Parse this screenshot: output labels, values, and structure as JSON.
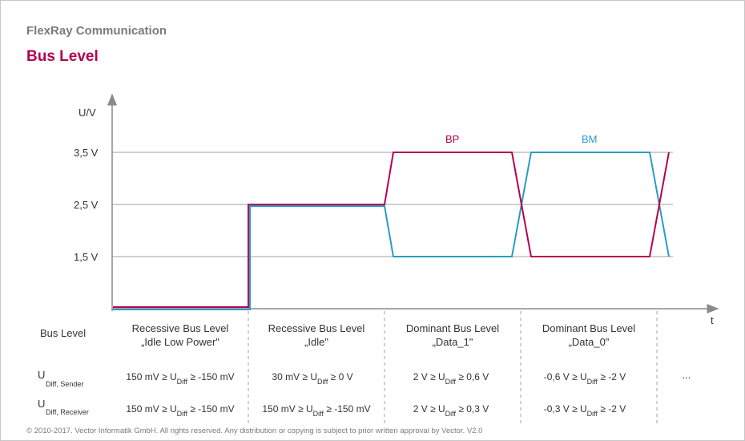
{
  "header": {
    "subtitle": "FlexRay Communication",
    "title": "Bus Level"
  },
  "colors": {
    "bp": "#b4004e",
    "bm": "#2a9bc8",
    "axis": "#8a8a8a",
    "grid": "#a0a0a0",
    "text": "#333333"
  },
  "axes": {
    "y_label": "U/V",
    "x_label": "t",
    "y_ticks": [
      "3,5 V",
      "2,5 V",
      "1,5 V"
    ]
  },
  "series_labels": {
    "bp": "BP",
    "bm": "BM"
  },
  "table": {
    "row_headers": {
      "bus_level": "Bus Level",
      "sender_main": "U",
      "sender_sub": "Diff, Sender",
      "receiver_main": "U",
      "receiver_sub": "Diff, Receiver"
    },
    "columns": [
      {
        "line1": "Recessive Bus Level",
        "line2": "„Idle Low Power\"",
        "sender": {
          "a": "150 mV ≥ U",
          "sub": "Diff",
          "b": " ≥ -150 mV"
        },
        "receiver": {
          "a": "150 mV ≥ U",
          "sub": "Diff",
          "b": " ≥ -150 mV"
        }
      },
      {
        "line1": "Recessive Bus Level",
        "line2": "„Idle\"",
        "sender": {
          "a": "30 mV ≥ U",
          "sub": "Diff",
          "b": " ≥ 0 V"
        },
        "receiver": {
          "a": "150 mV ≥ U",
          "sub": "Diff",
          "b": " ≥ -150 mV"
        }
      },
      {
        "line1": "Dominant Bus Level",
        "line2": "„Data_1\"",
        "sender": {
          "a": "2 V ≥ U",
          "sub": "Diff",
          "b": " ≥ 0,6 V"
        },
        "receiver": {
          "a": "2 V ≥ U",
          "sub": "Diff",
          "b": " ≥ 0,3 V"
        }
      },
      {
        "line1": "Dominant Bus Level",
        "line2": "„Data_0\"",
        "sender": {
          "a": "-0,6 V ≥ U",
          "sub": "Diff",
          "b": " ≥ -2 V"
        },
        "receiver": {
          "a": "-0,3 V ≥ U",
          "sub": "Diff",
          "b": " ≥ -2 V"
        }
      }
    ],
    "ellipsis": "..."
  },
  "footer": "© 2010-2017. Vector Informatik GmbH. All rights reserved. Any distribution or copying is subject to prior written approval by Vector. V2.0"
}
